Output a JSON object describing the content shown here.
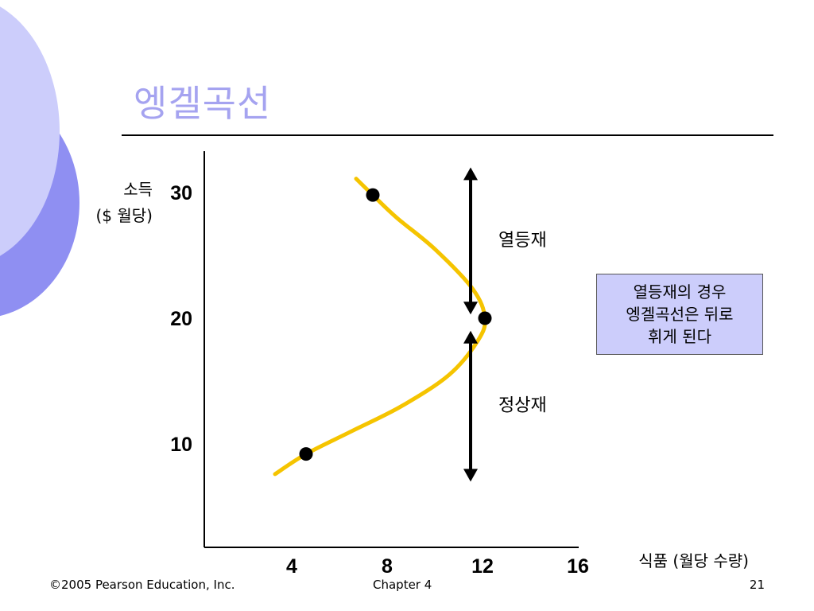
{
  "slide": {
    "title": "엥겔곡선",
    "footer": {
      "copyright": "©2005 Pearson Education, Inc.",
      "chapter": "Chapter 4",
      "page": "21"
    },
    "note_box": {
      "lines": [
        "열등재의 경우",
        "엥겔곡선은 뒤로",
        "휘게 된다"
      ]
    },
    "colors": {
      "title": "#a5a3f0",
      "curve": "#f5c400",
      "note_background": "#cccdfb",
      "decor_light": "#cccdfb",
      "decor_dark": "#8f8ff2"
    }
  },
  "chart_data": {
    "type": "line",
    "title": "",
    "xlabel": "식품 (월당 수량)",
    "ylabel_lines": [
      "소득",
      "($ 월당)"
    ],
    "x_ticks": [
      4,
      8,
      12,
      16
    ],
    "y_ticks": [
      10,
      20,
      30
    ],
    "x_tick_labels": [
      "4",
      "8",
      "12",
      "16"
    ],
    "y_tick_labels": [
      "10",
      "20",
      "30"
    ],
    "xlim": [
      0,
      16.5
    ],
    "ylim": [
      2,
      33
    ],
    "grid": false,
    "series": [
      {
        "values": [
          {
            "x": 3.3,
            "y": 7.6
          },
          {
            "x": 4.6,
            "y": 9.2
          },
          {
            "x": 6.5,
            "y": 11.0
          },
          {
            "x": 8.6,
            "y": 13.0
          },
          {
            "x": 10.6,
            "y": 15.5
          },
          {
            "x": 11.8,
            "y": 18.2
          },
          {
            "x": 12.1,
            "y": 20.0
          },
          {
            "x": 11.6,
            "y": 22.3
          },
          {
            "x": 10.0,
            "y": 25.5
          },
          {
            "x": 8.4,
            "y": 28.0
          },
          {
            "x": 7.4,
            "y": 29.8
          },
          {
            "x": 6.7,
            "y": 31.1
          }
        ]
      }
    ],
    "points": [
      {
        "x": 4.6,
        "y": 9.2
      },
      {
        "x": 12.1,
        "y": 20.0
      },
      {
        "x": 7.4,
        "y": 29.8
      }
    ],
    "annotations": [
      {
        "label": "열등재",
        "y_from": 20.3,
        "y_to": 32.0
      },
      {
        "label": "정상재",
        "y_from": 7.0,
        "y_to": 19.0
      }
    ]
  }
}
